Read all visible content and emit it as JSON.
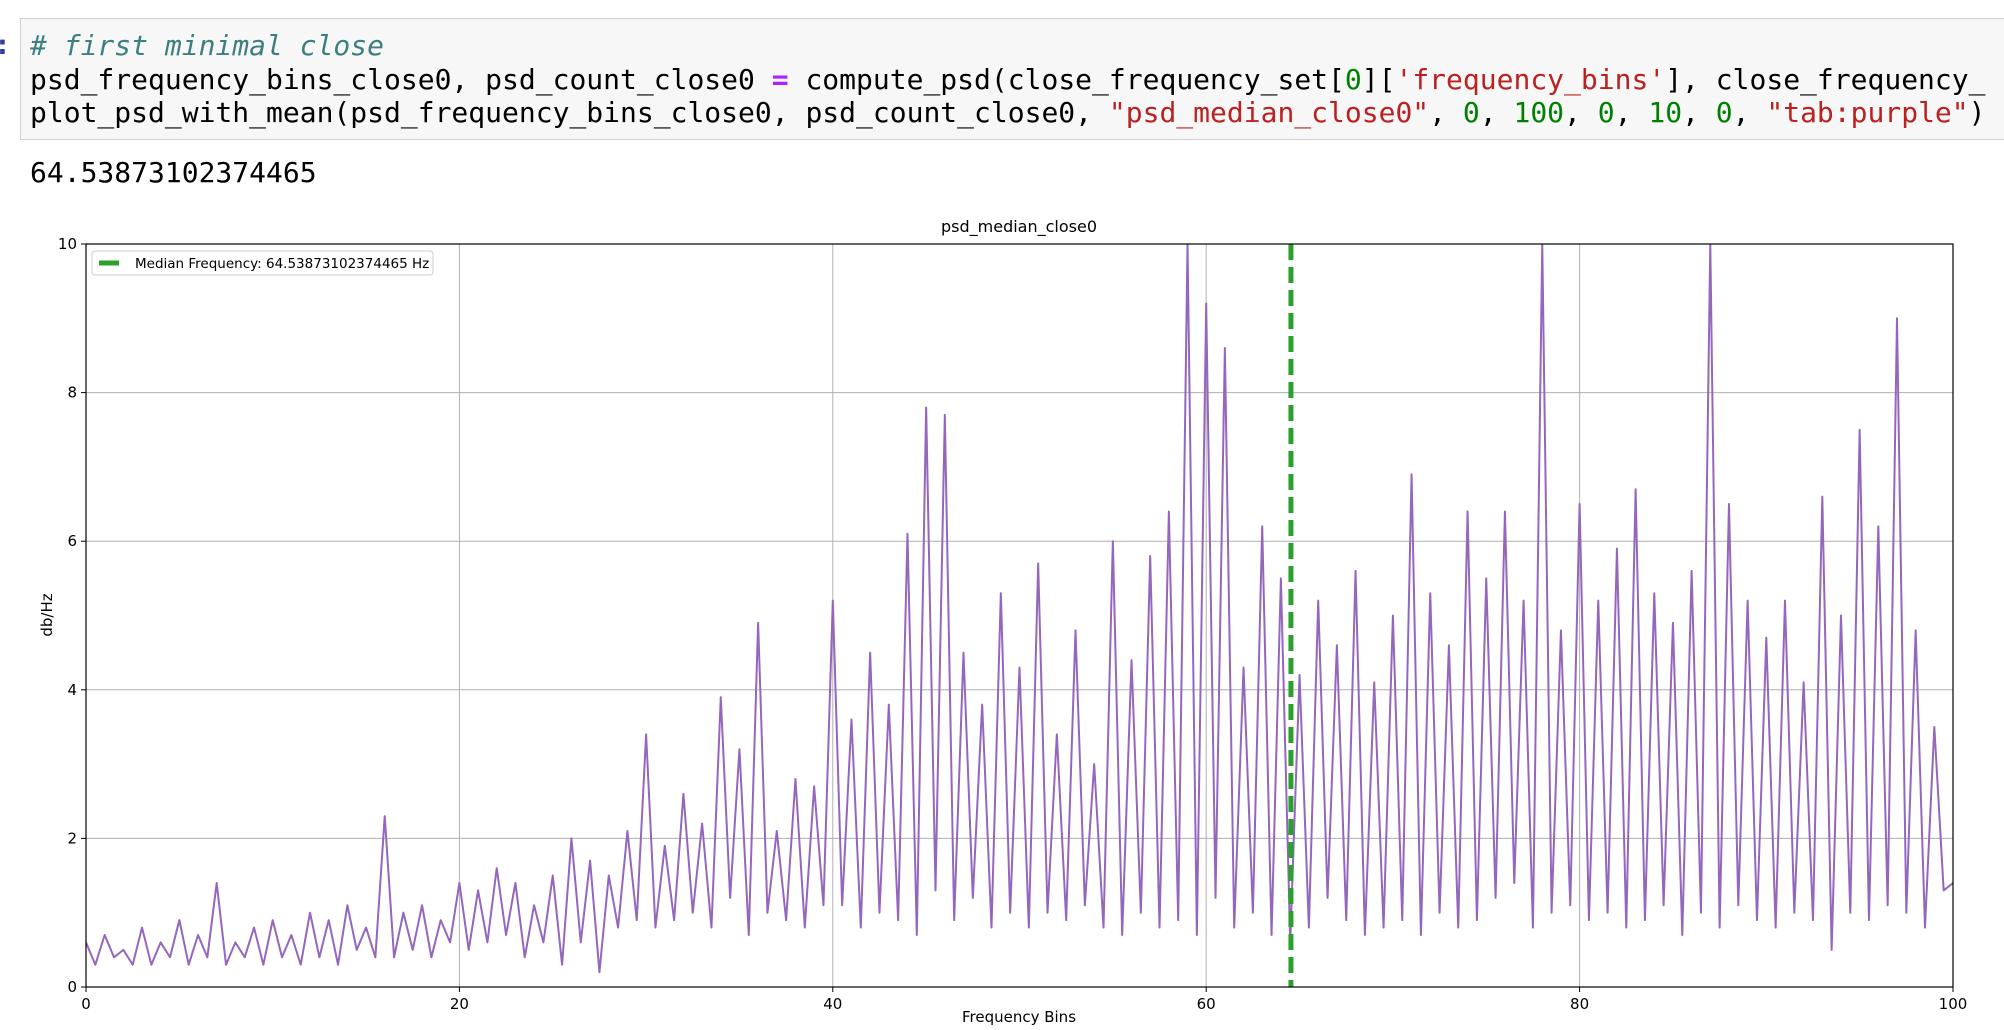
{
  "code": {
    "prompt": ":",
    "lines": [
      [
        {
          "text": "# first minimal close",
          "color": "#3d7f7f",
          "italic": true
        }
      ],
      [
        {
          "text": "psd_frequency_bins_close0, psd_count_close0 ",
          "color": "#000000"
        },
        {
          "text": "=",
          "color": "#aa22ff",
          "bold": true
        },
        {
          "text": " compute_psd(close_frequency_set[",
          "color": "#000000"
        },
        {
          "text": "0",
          "color": "#008000"
        },
        {
          "text": "][",
          "color": "#000000"
        },
        {
          "text": "'frequency_bins'",
          "color": "#ba2121"
        },
        {
          "text": "], close_frequency_",
          "color": "#000000"
        }
      ],
      [
        {
          "text": "plot_psd_with_mean(psd_frequency_bins_close0, psd_count_close0, ",
          "color": "#000000"
        },
        {
          "text": "\"psd_median_close0\"",
          "color": "#ba2121"
        },
        {
          "text": ", ",
          "color": "#000000"
        },
        {
          "text": "0",
          "color": "#008000"
        },
        {
          "text": ", ",
          "color": "#000000"
        },
        {
          "text": "100",
          "color": "#008000"
        },
        {
          "text": ", ",
          "color": "#000000"
        },
        {
          "text": "0",
          "color": "#008000"
        },
        {
          "text": ", ",
          "color": "#000000"
        },
        {
          "text": "10",
          "color": "#008000"
        },
        {
          "text": ", ",
          "color": "#000000"
        },
        {
          "text": "0",
          "color": "#008000"
        },
        {
          "text": ", ",
          "color": "#000000"
        },
        {
          "text": "\"tab:purple\"",
          "color": "#ba2121"
        },
        {
          "text": ")",
          "color": "#000000"
        }
      ]
    ]
  },
  "output": {
    "text": "64.53873102374465"
  },
  "chart_data": {
    "type": "line",
    "title": "psd_median_close0",
    "x_label": "Frequency Bins",
    "y_label": "db/Hz",
    "xlim": [
      0,
      100
    ],
    "ylim": [
      0,
      10
    ],
    "xticks": [
      0,
      20,
      40,
      60,
      80,
      100
    ],
    "yticks": [
      0,
      2,
      4,
      6,
      8,
      10
    ],
    "grid": true,
    "vline": {
      "value": 64.53873102374465,
      "label": "Median Frequency: 64.53873102374465 Hz",
      "color": "#2ca02c"
    },
    "x": [
      0,
      0.5,
      1,
      1.5,
      2,
      2.5,
      3,
      3.5,
      4,
      4.5,
      5,
      5.5,
      6,
      6.5,
      7,
      7.5,
      8,
      8.5,
      9,
      9.5,
      10,
      10.5,
      11,
      11.5,
      12,
      12.5,
      13,
      13.5,
      14,
      14.5,
      15,
      15.5,
      16,
      16.5,
      17,
      17.5,
      18,
      18.5,
      19,
      19.5,
      20,
      20.5,
      21,
      21.5,
      22,
      22.5,
      23,
      23.5,
      24,
      24.5,
      25,
      25.5,
      26,
      26.5,
      27,
      27.5,
      28,
      28.5,
      29,
      29.5,
      30,
      30.5,
      31,
      31.5,
      32,
      32.5,
      33,
      33.5,
      34,
      34.5,
      35,
      35.5,
      36,
      36.5,
      37,
      37.5,
      38,
      38.5,
      39,
      39.5,
      40,
      40.5,
      41,
      41.5,
      42,
      42.5,
      43,
      43.5,
      44,
      44.5,
      45,
      45.5,
      46,
      46.5,
      47,
      47.5,
      48,
      48.5,
      49,
      49.5,
      50,
      50.5,
      51,
      51.5,
      52,
      52.5,
      53,
      53.5,
      54,
      54.5,
      55,
      55.5,
      56,
      56.5,
      57,
      57.5,
      58,
      58.5,
      59,
      59.5,
      60,
      60.5,
      61,
      61.5,
      62,
      62.5,
      63,
      63.5,
      64,
      64.5,
      65,
      65.5,
      66,
      66.5,
      67,
      67.5,
      68,
      68.5,
      69,
      69.5,
      70,
      70.5,
      71,
      71.5,
      72,
      72.5,
      73,
      73.5,
      74,
      74.5,
      75,
      75.5,
      76,
      76.5,
      77,
      77.5,
      78,
      78.5,
      79,
      79.5,
      80,
      80.5,
      81,
      81.5,
      82,
      82.5,
      83,
      83.5,
      84,
      84.5,
      85,
      85.5,
      86,
      86.5,
      87,
      87.5,
      88,
      88.5,
      89,
      89.5,
      90,
      90.5,
      91,
      91.5,
      92,
      92.5,
      93,
      93.5,
      94,
      94.5,
      95,
      95.5,
      96,
      96.5,
      97,
      97.5,
      98,
      98.5,
      99,
      99.5,
      100
    ],
    "series": [
      {
        "color": "#9467bd",
        "values": [
          0.6,
          0.3,
          0.7,
          0.4,
          0.5,
          0.3,
          0.8,
          0.3,
          0.6,
          0.4,
          0.9,
          0.3,
          0.7,
          0.4,
          1.4,
          0.3,
          0.6,
          0.4,
          0.8,
          0.3,
          0.9,
          0.4,
          0.7,
          0.3,
          1.0,
          0.4,
          0.9,
          0.3,
          1.1,
          0.5,
          0.8,
          0.4,
          2.3,
          0.4,
          1.0,
          0.5,
          1.1,
          0.4,
          0.9,
          0.6,
          1.4,
          0.5,
          1.3,
          0.6,
          1.6,
          0.7,
          1.4,
          0.4,
          1.1,
          0.6,
          1.5,
          0.3,
          2.0,
          0.6,
          1.7,
          0.2,
          1.5,
          0.8,
          2.1,
          0.9,
          3.4,
          0.8,
          1.9,
          0.9,
          2.6,
          1.0,
          2.2,
          0.8,
          3.9,
          1.2,
          3.2,
          0.7,
          4.9,
          1.0,
          2.1,
          0.9,
          2.8,
          0.8,
          2.7,
          1.1,
          5.2,
          1.1,
          3.6,
          0.8,
          4.5,
          1.0,
          3.8,
          0.9,
          6.1,
          0.7,
          7.8,
          1.3,
          7.7,
          0.9,
          4.5,
          1.2,
          3.8,
          0.8,
          5.3,
          1.0,
          4.3,
          0.8,
          5.7,
          1.0,
          3.4,
          0.9,
          4.8,
          1.1,
          3.0,
          0.8,
          6.0,
          0.7,
          4.4,
          1.0,
          5.8,
          0.8,
          6.4,
          0.9,
          10.0,
          0.7,
          9.2,
          1.2,
          8.6,
          0.8,
          4.3,
          1.0,
          6.2,
          0.7,
          5.5,
          0.6,
          4.2,
          0.8,
          5.2,
          1.2,
          4.6,
          0.9,
          5.6,
          0.7,
          4.1,
          0.8,
          5.0,
          0.9,
          6.9,
          0.7,
          5.3,
          1.0,
          4.6,
          0.8,
          6.4,
          0.9,
          5.5,
          1.2,
          6.4,
          1.4,
          5.2,
          0.8,
          10.0,
          1.0,
          4.8,
          1.1,
          6.5,
          0.9,
          5.2,
          1.0,
          5.9,
          0.8,
          6.7,
          0.9,
          5.3,
          1.1,
          4.9,
          0.7,
          5.6,
          1.0,
          10.0,
          0.8,
          6.5,
          1.1,
          5.2,
          0.9,
          4.7,
          0.8,
          5.2,
          1.0,
          4.1,
          0.9,
          6.6,
          0.5,
          5.0,
          1.0,
          7.5,
          0.9,
          6.2,
          1.1,
          9.0,
          1.0,
          4.8,
          0.8,
          3.5,
          1.3,
          1.4
        ]
      }
    ]
  }
}
